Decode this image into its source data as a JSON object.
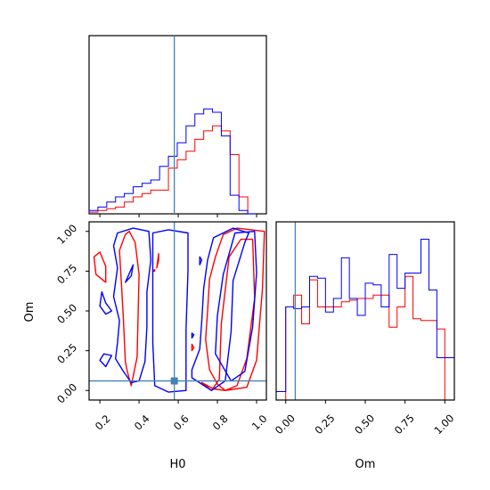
{
  "chart_data": {
    "type": "corner",
    "parameters": [
      "H0",
      "Om"
    ],
    "axis_labels": {
      "x_bottom_left": "H0",
      "x_bottom_right": "Om",
      "y_bottom_left": "Om"
    },
    "colors": {
      "series_red": "#ff0000",
      "series_blue": "#0000ff",
      "truth": "#4682b4",
      "axes": "#000000"
    },
    "truth": {
      "H0": 0.58,
      "Om": 0.06
    },
    "ranges": {
      "H0": [
        0.145,
        1.05
      ],
      "Om": [
        -0.06,
        1.06
      ]
    },
    "ticks": {
      "H0": {
        "values": [
          0.2,
          0.4,
          0.6,
          0.8,
          1.0
        ],
        "labels": [
          "0.2",
          "0.4",
          "0.6",
          "0.8",
          "1.0"
        ]
      },
      "Om": {
        "values": [
          0.0,
          0.25,
          0.5,
          0.75,
          1.0
        ],
        "labels": [
          "0.00",
          "0.25",
          "0.50",
          "0.75",
          "1.00"
        ]
      }
    },
    "hist_H0": {
      "bin_edges": [
        0.145,
        0.19,
        0.235,
        0.28,
        0.325,
        0.37,
        0.415,
        0.46,
        0.505,
        0.55,
        0.595,
        0.64,
        0.685,
        0.73,
        0.775,
        0.82,
        0.865,
        0.91,
        0.955,
        1.0
      ],
      "series": [
        {
          "color": "red",
          "values": [
            0.01,
            0.02,
            0.03,
            0.04,
            0.07,
            0.1,
            0.12,
            0.14,
            0.14,
            0.27,
            0.32,
            0.37,
            0.44,
            0.49,
            0.52,
            0.49,
            0.35,
            0.1,
            0.0
          ]
        },
        {
          "color": "blue",
          "values": [
            0.02,
            0.04,
            0.07,
            0.1,
            0.12,
            0.16,
            0.18,
            0.2,
            0.28,
            0.34,
            0.42,
            0.52,
            0.59,
            0.62,
            0.6,
            0.46,
            0.11,
            0.02,
            0.0
          ]
        }
      ]
    },
    "hist_Om": {
      "bin_edges": [
        -0.06,
        0.0,
        0.05,
        0.1,
        0.15,
        0.2,
        0.25,
        0.3,
        0.35,
        0.4,
        0.45,
        0.5,
        0.55,
        0.6,
        0.65,
        0.7,
        0.75,
        0.8,
        0.85,
        0.9,
        0.95,
        1.0,
        1.06
      ],
      "series": [
        {
          "color": "red",
          "values": [
            0.0,
            0.55,
            0.62,
            0.45,
            0.71,
            0.55,
            0.55,
            0.55,
            0.58,
            0.59,
            0.6,
            0.6,
            0.62,
            0.62,
            0.43,
            0.55,
            0.73,
            0.48,
            0.47,
            0.47,
            0.42,
            0.0
          ]
        },
        {
          "color": "blue",
          "values": [
            0.05,
            0.55,
            0.54,
            0.55,
            0.73,
            0.72,
            0.52,
            0.6,
            0.84,
            0.6,
            0.5,
            0.69,
            0.68,
            0.55,
            0.86,
            0.66,
            0.75,
            0.75,
            0.95,
            0.65,
            0.25,
            0.25
          ]
        }
      ]
    },
    "contours": {
      "red": [
        [
          [
            0.34,
            0.12
          ],
          [
            0.36,
            0.03
          ],
          [
            0.39,
            0.21
          ],
          [
            0.4,
            0.73
          ],
          [
            0.38,
            0.93
          ],
          [
            0.35,
            1.0
          ],
          [
            0.33,
            0.98
          ],
          [
            0.3,
            0.88
          ],
          [
            0.31,
            0.67
          ],
          [
            0.32,
            0.45
          ],
          [
            0.33,
            0.18
          ]
        ],
        [
          [
            0.72,
            0.05
          ],
          [
            0.77,
            0.0
          ],
          [
            0.81,
            0.07
          ],
          [
            0.82,
            0.42
          ],
          [
            0.86,
            0.84
          ],
          [
            0.92,
            0.95
          ],
          [
            0.98,
            0.95
          ],
          [
            0.99,
            0.58
          ],
          [
            0.95,
            0.2
          ],
          [
            0.9,
            0.03
          ],
          [
            0.84,
            0.0
          ],
          [
            0.78,
            0.01
          ]
        ],
        [
          [
            0.84,
            0.0
          ],
          [
            0.95,
            0.02
          ],
          [
            1.0,
            0.19
          ],
          [
            1.03,
            0.64
          ],
          [
            1.04,
            1.0
          ],
          [
            0.9,
            1.02
          ],
          [
            0.83,
            0.98
          ],
          [
            0.79,
            0.84
          ],
          [
            0.76,
            0.7
          ],
          [
            0.75,
            0.5
          ],
          [
            0.74,
            0.32
          ],
          [
            0.76,
            0.13
          ],
          [
            0.8,
            0.04
          ]
        ],
        [
          [
            0.18,
            0.73
          ],
          [
            0.23,
            0.68
          ],
          [
            0.23,
            0.78
          ],
          [
            0.2,
            0.87
          ],
          [
            0.17,
            0.84
          ]
        ],
        [
          [
            0.49,
            0.77
          ],
          [
            0.5,
            0.82
          ],
          [
            0.5,
            0.86
          ]
        ],
        [
          [
            0.47,
            0.75
          ],
          [
            0.48,
            0.76
          ],
          [
            0.48,
            0.75
          ]
        ],
        [
          [
            0.67,
            0.25
          ],
          [
            0.68,
            0.27
          ],
          [
            0.67,
            0.29
          ]
        ]
      ],
      "blue": [
        [
          [
            0.36,
            0.05
          ],
          [
            0.4,
            0.06
          ],
          [
            0.43,
            0.18
          ],
          [
            0.44,
            0.4
          ],
          [
            0.44,
            0.62
          ],
          [
            0.46,
            0.82
          ],
          [
            0.45,
            1.0
          ],
          [
            0.37,
            1.02
          ],
          [
            0.29,
            0.99
          ],
          [
            0.27,
            0.91
          ],
          [
            0.29,
            0.77
          ],
          [
            0.27,
            0.59
          ],
          [
            0.3,
            0.44
          ],
          [
            0.29,
            0.3
          ],
          [
            0.28,
            0.2
          ],
          [
            0.32,
            0.12
          ]
        ],
        [
          [
            0.48,
            0.03
          ],
          [
            0.55,
            -0.01
          ],
          [
            0.64,
            0.0
          ],
          [
            0.64,
            0.38
          ],
          [
            0.65,
            0.75
          ],
          [
            0.65,
            0.99
          ],
          [
            0.55,
            1.01
          ],
          [
            0.47,
            0.99
          ],
          [
            0.47,
            0.6
          ],
          [
            0.47,
            0.3
          ]
        ],
        [
          [
            0.67,
            0.08
          ],
          [
            0.77,
            0.0
          ],
          [
            0.84,
            0.06
          ],
          [
            0.87,
            0.37
          ],
          [
            0.88,
            0.69
          ],
          [
            0.94,
            0.93
          ],
          [
            0.96,
            0.99
          ],
          [
            0.88,
            1.02
          ],
          [
            0.78,
            0.96
          ],
          [
            0.75,
            0.82
          ],
          [
            0.73,
            0.64
          ],
          [
            0.72,
            0.43
          ],
          [
            0.71,
            0.26
          ],
          [
            0.67,
            0.13
          ]
        ],
        [
          [
            0.87,
            0.06
          ],
          [
            0.94,
            0.12
          ],
          [
            0.98,
            0.4
          ],
          [
            1.0,
            0.74
          ],
          [
            0.99,
            1.0
          ],
          [
            0.89,
            0.99
          ],
          [
            0.83,
            0.73
          ],
          [
            0.8,
            0.47
          ],
          [
            0.79,
            0.23
          ]
        ],
        [
          [
            0.21,
            0.62
          ],
          [
            0.23,
            0.55
          ],
          [
            0.26,
            0.5
          ],
          [
            0.23,
            0.48
          ],
          [
            0.2,
            0.53
          ]
        ],
        [
          [
            0.2,
            0.19
          ],
          [
            0.23,
            0.15
          ],
          [
            0.26,
            0.22
          ],
          [
            0.22,
            0.23
          ]
        ],
        [
          [
            0.33,
            0.68
          ],
          [
            0.36,
            0.72
          ],
          [
            0.37,
            0.79
          ]
        ],
        [
          [
            0.67,
            0.36
          ],
          [
            0.68,
            0.35
          ],
          [
            0.67,
            0.33
          ]
        ],
        [
          [
            0.71,
            0.79
          ],
          [
            0.72,
            0.82
          ],
          [
            0.71,
            0.84
          ]
        ]
      ]
    }
  }
}
